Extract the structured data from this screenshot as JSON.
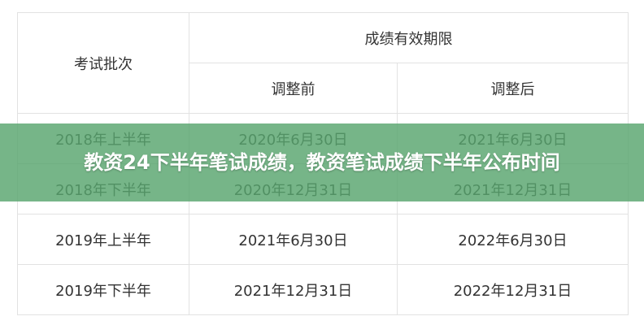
{
  "table": {
    "header": {
      "batch": "考试批次",
      "validity": "成绩有效期限",
      "before": "调整前",
      "after": "调整后"
    },
    "rows": [
      {
        "batch": "2018年上半年",
        "before": "2020年6月30日",
        "after": "2021年6月30日"
      },
      {
        "batch": "2018年下半年",
        "before": "2020年12月31日",
        "after": "2021年12月31日"
      },
      {
        "batch": "2019年上半年",
        "before": "2021年6月30日",
        "after": "2022年6月30日"
      },
      {
        "batch": "2019年下半年",
        "before": "2021年12月31日",
        "after": "2022年12月31日"
      }
    ]
  },
  "banner": {
    "title": "教资24下半年笔试成绩，教资笔试成绩下半年公布时间",
    "color": "#58a56e"
  }
}
